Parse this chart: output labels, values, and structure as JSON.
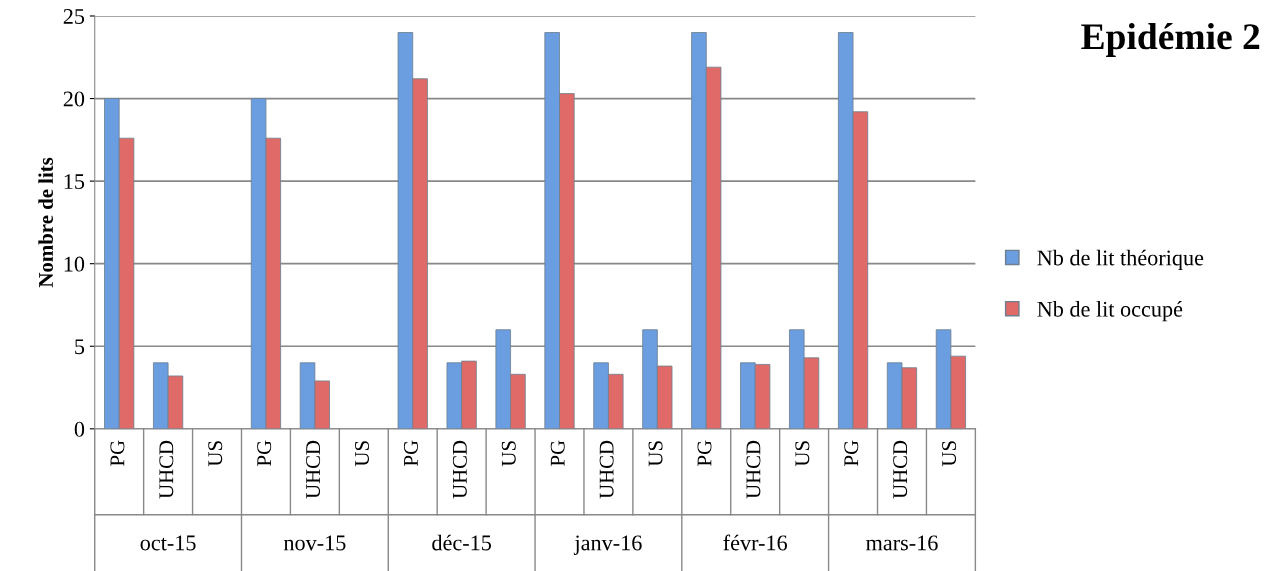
{
  "chart_data": {
    "type": "bar",
    "title": "Epidémie 2",
    "ylabel": "Nombre de lits",
    "categories": [
      "PG",
      "UHCD",
      "US",
      "PG",
      "UHCD",
      "US",
      "PG",
      "UHCD",
      "US",
      "PG",
      "UHCD",
      "US",
      "PG",
      "UHCD",
      "US",
      "PG",
      "UHCD",
      "US"
    ],
    "annotations": [
      "oct-15",
      "nov-15",
      "déc-15",
      "janv-16",
      "févr-16",
      "mars-16"
    ],
    "series": [
      {
        "name": "Nb de lit théorique",
        "color": "#6a9ee0",
        "values": [
          20,
          4,
          null,
          20,
          4,
          null,
          24,
          4,
          6,
          24,
          4,
          6,
          24,
          4,
          6,
          24,
          4,
          6
        ]
      },
      {
        "name": "Nb de lit occupé",
        "color": "#e06a68",
        "values": [
          17.6,
          3.2,
          null,
          17.6,
          2.9,
          null,
          21.2,
          4.1,
          3.3,
          20.3,
          3.3,
          3.8,
          21.9,
          3.9,
          4.3,
          19.2,
          3.7,
          4.4
        ]
      }
    ],
    "ylim": [
      0,
      25
    ],
    "yticks": [
      0,
      5,
      10,
      15,
      20,
      25
    ],
    "grid": "y",
    "legend": "right"
  }
}
